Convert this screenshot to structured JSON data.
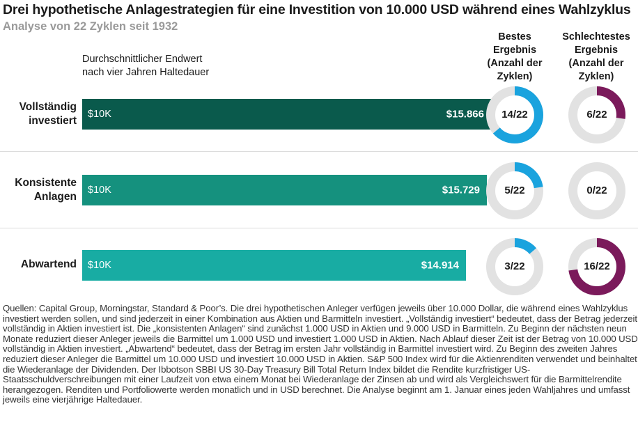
{
  "title": "Drei hypothetische Anlagestrategien für eine Investition von 10.000 USD während eines Wahlzyklus",
  "subtitle": "Analyse von 22 Zyklen seit 1932",
  "columns": {
    "bar_header": [
      "Durchschnittlicher Endwert",
      "nach vier Jahren Haltedauer"
    ],
    "best_header": [
      "Bestes",
      "Ergebnis",
      "(Anzahl der",
      "Zyklen)"
    ],
    "worst_header": [
      "Schlechtestes",
      "Ergebnis",
      "(Anzahl der",
      "Zyklen)"
    ]
  },
  "colors": {
    "ring_track": "#e2e2e2",
    "best": "#1aa3de",
    "worst": "#7b1a5b"
  },
  "chart_data": {
    "type": "bar",
    "orientation": "horizontal",
    "title": "Drei hypothetische Anlagestrategien für eine Investition von 10.000 USD während eines Wahlzyklus",
    "xlabel": "Durchschnittlicher Endwert nach vier Jahren Haltedauer",
    "xlim": [
      0,
      16500
    ],
    "start_label": "$10K",
    "total_cycles": 22,
    "categories": [
      {
        "label_lines": [
          "Vollständig",
          "investiert"
        ],
        "value": 15866,
        "value_label": "$15.866",
        "color": "#0a5a4c",
        "best": 14,
        "best_label": "14/22",
        "worst": 6,
        "worst_label": "6/22"
      },
      {
        "label_lines": [
          "Konsistente",
          "Anlagen"
        ],
        "value": 15729,
        "value_label": "$15.729",
        "color": "#15917e",
        "best": 5,
        "best_label": "5/22",
        "worst": 0,
        "worst_label": "0/22"
      },
      {
        "label_lines": [
          "Abwartend"
        ],
        "value": 14914,
        "value_label": "$14.914",
        "color": "#18aca3",
        "best": 3,
        "best_label": "3/22",
        "worst": 16,
        "worst_label": "16/22"
      }
    ]
  },
  "footnote": "Quellen: Capital Group, Morningstar, Standard & Poor’s. Die drei hypothetischen Anleger verfügen jeweils über 10.000 Dollar, die während eines Wahlzyklus investiert werden sollen, und sind jederzeit in einer Kombination aus Aktien und Barmitteln investiert. „Vollständig investiert“ bedeutet, dass der Betrag jederzeit vollständig in Aktien investiert ist. Die „konsistenten Anlagen“ sind zunächst 1.000 USD in Aktien und 9.000 USD in Barmitteln. Zu Beginn der nächsten neun Monate reduziert dieser Anleger jeweils die Barmittel um 1.000 USD und investiert 1.000 USD in Aktien. Nach Ablauf dieser Zeit ist der Betrag von 10.000 USD vollständig in Aktien investiert. „Abwartend“ bedeutet, dass der Betrag im ersten Jahr vollständig in Barmittel investiert wird. Zu Beginn des zweiten Jahres reduziert dieser Anleger die Barmittel um 10.000 USD und investiert 10.000 USD in Aktien. S&P 500 Index wird für die Aktienrenditen verwendet und beinhaltet die Wiederanlage der Dividenden. Der Ibbotson SBBI US 30-Day Treasury Bill Total Return Index bildet die Rendite kurzfristiger US-Staatsschuldverschreibungen mit einer Laufzeit von etwa einem Monat bei Wiederanlage der Zinsen ab und wird als Vergleichswert für die Barmittelrendite herangezogen. Renditen und Portfoliowerte werden monatlich und in USD berechnet. Die Analyse beginnt am 1. Januar eines jeden Wahljahres und umfasst jeweils eine vierjährige Haltedauer."
}
